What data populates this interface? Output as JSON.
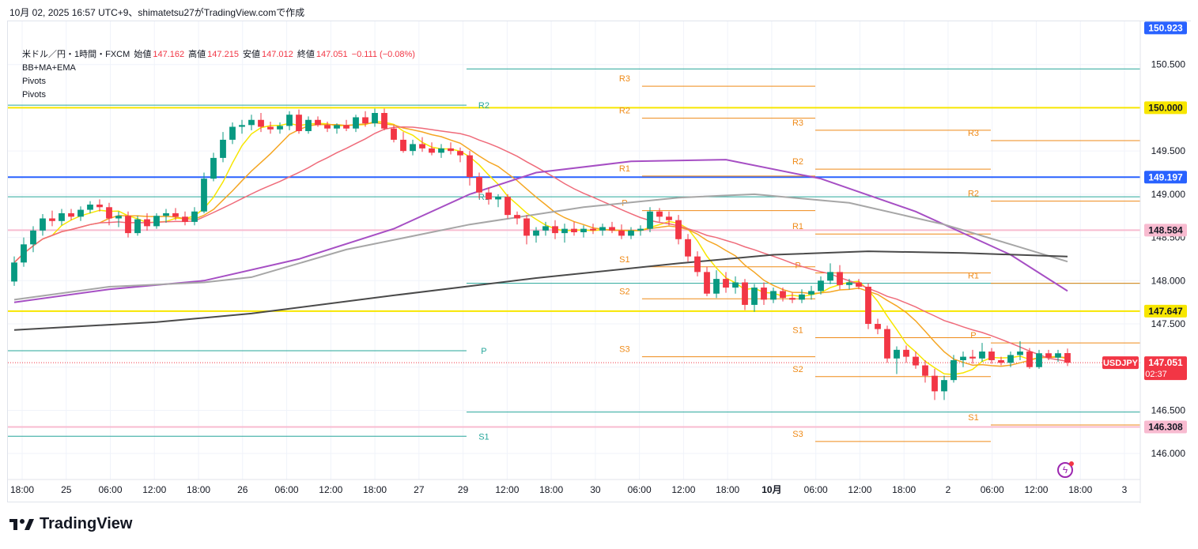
{
  "caption": "10月 02, 2025 16:57 UTC+9、shimatetsu27がTradingView.comで作成",
  "legend": {
    "symbol": "米ドル／円・1時間・FXCM",
    "open_label": "始値",
    "open": "147.162",
    "high_label": "高値",
    "high": "147.215",
    "low_label": "安値",
    "low": "147.012",
    "close_label": "終値",
    "close": "147.051",
    "change": "−0.111 (−0.08%)",
    "indicators": [
      "BB+MA+EMA",
      "Pivots",
      "Pivots"
    ]
  },
  "brand": "TradingView",
  "chart_data": {
    "type": "candlestick",
    "symbol": "USDJPY",
    "timeframe": "1時間",
    "y_ticks": [
      146.0,
      146.5,
      147.0,
      147.5,
      148.0,
      148.5,
      149.0,
      149.5,
      150.0,
      150.5
    ],
    "y_tick_labels": [
      "146.000",
      "146.500",
      "147.000",
      "147.500",
      "148.000",
      "148.500",
      "149.000",
      "149.500",
      "150.000",
      "150.500"
    ],
    "ylim": [
      145.7,
      151.0
    ],
    "x_tick_labels": [
      "18:00",
      "25",
      "06:00",
      "12:00",
      "18:00",
      "26",
      "06:00",
      "12:00",
      "18:00",
      "27",
      "29",
      "12:00",
      "18:00",
      "30",
      "06:00",
      "12:00",
      "18:00",
      "10月",
      "06:00",
      "12:00",
      "18:00",
      "2",
      "06:00",
      "12:00",
      "18:00",
      "3"
    ],
    "price_badges": [
      {
        "value": "150.923",
        "color": "#2962ff"
      },
      {
        "value": "150.000",
        "color": "#f7e600"
      },
      {
        "value": "149.197",
        "color": "#2962ff"
      },
      {
        "value": "148.584",
        "color": "#f8bbd0"
      },
      {
        "value": "147.647",
        "color": "#f7e600"
      },
      {
        "value": "146.308",
        "color": "#f8bbd0"
      }
    ],
    "last_price": {
      "symbol": "USDJPY",
      "value": "147.051",
      "countdown": "02:37",
      "color": "#f23645"
    },
    "horizontal_lines": [
      {
        "price": 150.0,
        "color": "#f7e600"
      },
      {
        "price": 149.197,
        "color": "#2962ff"
      },
      {
        "price": 148.584,
        "color": "#f8bbd0"
      },
      {
        "price": 147.647,
        "color": "#f7e600"
      },
      {
        "price": 146.308,
        "color": "#f8bbd0"
      }
    ],
    "pivots_weekly": {
      "color": "#26a69a",
      "levels": [
        {
          "label": "R2",
          "price": 150.03,
          "x_from": 0.0,
          "x_to": 0.405
        },
        {
          "label": "R1",
          "price": 148.97,
          "x_from": 0.0,
          "x_to": 0.405
        },
        {
          "label": "P",
          "price": 147.19,
          "x_from": 0.0,
          "x_to": 0.405
        },
        {
          "label": "S1",
          "price": 146.2,
          "x_from": 0.0,
          "x_to": 0.405
        },
        {
          "label": "",
          "price": 150.45,
          "x_from": 0.405,
          "x_to": 1.0
        },
        {
          "label": "",
          "price": 148.97,
          "x_from": 0.405,
          "x_to": 1.0
        },
        {
          "label": "",
          "price": 147.97,
          "x_from": 0.405,
          "x_to": 1.0
        },
        {
          "label": "",
          "price": 146.48,
          "x_from": 0.405,
          "x_to": 1.0
        }
      ]
    },
    "pivots_daily": {
      "color": "#ef8a17",
      "days": [
        {
          "x_from": 0.56,
          "x_to": 0.713,
          "R3": 150.25,
          "R2": 149.88,
          "R1": 149.21,
          "P": 148.81,
          "S1": 148.16,
          "S2": 147.79,
          "S3": 147.12
        },
        {
          "x_from": 0.713,
          "x_to": 0.868,
          "R3": 149.74,
          "R2": 149.29,
          "R1": 148.54,
          "P": 148.09,
          "S1": 147.34,
          "S2": 146.89,
          "S3": 146.14
        },
        {
          "x_from": 0.868,
          "x_to": 1.0,
          "R3": 149.62,
          "R2": 148.92,
          "R1": 147.97,
          "P": 147.28,
          "S1": 146.33,
          "S2": null,
          "S3": null
        }
      ]
    },
    "ohlc": [
      [
        147.99,
        148.28,
        147.94,
        148.21
      ],
      [
        148.21,
        148.5,
        148.16,
        148.42
      ],
      [
        148.42,
        148.63,
        148.33,
        148.58
      ],
      [
        148.58,
        148.77,
        148.52,
        148.72
      ],
      [
        148.72,
        148.81,
        148.63,
        148.69
      ],
      [
        148.69,
        148.83,
        148.64,
        148.78
      ],
      [
        148.78,
        148.83,
        148.7,
        148.74
      ],
      [
        148.74,
        148.86,
        148.69,
        148.82
      ],
      [
        148.82,
        148.92,
        148.78,
        148.88
      ],
      [
        148.88,
        148.94,
        148.8,
        148.85
      ],
      [
        148.85,
        148.9,
        148.64,
        148.72
      ],
      [
        148.72,
        148.8,
        148.62,
        148.75
      ],
      [
        148.75,
        148.8,
        148.5,
        148.55
      ],
      [
        148.55,
        148.75,
        148.52,
        148.71
      ],
      [
        148.71,
        148.78,
        148.58,
        148.63
      ],
      [
        148.63,
        148.78,
        148.6,
        148.75
      ],
      [
        148.75,
        148.83,
        148.67,
        148.78
      ],
      [
        148.78,
        148.84,
        148.7,
        148.74
      ],
      [
        148.74,
        148.8,
        148.64,
        148.68
      ],
      [
        148.68,
        148.85,
        148.64,
        148.8
      ],
      [
        148.8,
        149.25,
        148.78,
        149.18
      ],
      [
        149.18,
        149.48,
        149.15,
        149.42
      ],
      [
        149.42,
        149.72,
        149.37,
        149.63
      ],
      [
        149.63,
        149.83,
        149.58,
        149.78
      ],
      [
        149.78,
        149.86,
        149.7,
        149.8
      ],
      [
        149.8,
        149.92,
        149.74,
        149.86
      ],
      [
        149.86,
        149.94,
        149.72,
        149.78
      ],
      [
        149.78,
        149.84,
        149.7,
        149.75
      ],
      [
        149.75,
        149.83,
        149.7,
        149.79
      ],
      [
        149.79,
        149.96,
        149.74,
        149.92
      ],
      [
        149.92,
        149.98,
        149.7,
        149.73
      ],
      [
        149.73,
        149.9,
        149.7,
        149.86
      ],
      [
        149.86,
        149.9,
        149.78,
        149.8
      ],
      [
        149.8,
        149.84,
        149.72,
        149.76
      ],
      [
        149.76,
        149.82,
        149.7,
        149.8
      ],
      [
        149.8,
        149.86,
        149.73,
        149.76
      ],
      [
        149.76,
        149.92,
        149.72,
        149.89
      ],
      [
        149.89,
        149.96,
        149.78,
        149.82
      ],
      [
        149.82,
        149.99,
        149.78,
        149.94
      ],
      [
        149.94,
        149.99,
        149.74,
        149.76
      ],
      [
        149.76,
        149.8,
        149.6,
        149.63
      ],
      [
        149.63,
        149.72,
        149.48,
        149.5
      ],
      [
        149.5,
        149.63,
        149.45,
        149.58
      ],
      [
        149.58,
        149.66,
        149.49,
        149.53
      ],
      [
        149.53,
        149.6,
        149.45,
        149.48
      ],
      [
        149.48,
        149.58,
        149.42,
        149.53
      ],
      [
        149.53,
        149.6,
        149.46,
        149.5
      ],
      [
        149.5,
        149.54,
        149.37,
        149.45
      ],
      [
        149.45,
        149.5,
        149.1,
        149.2
      ],
      [
        149.2,
        149.25,
        148.95,
        149.02
      ],
      [
        149.02,
        149.08,
        148.88,
        148.94
      ],
      [
        148.94,
        149.0,
        148.85,
        148.97
      ],
      [
        148.97,
        149.0,
        148.72,
        148.76
      ],
      [
        148.76,
        148.8,
        148.65,
        148.72
      ],
      [
        148.72,
        148.76,
        148.42,
        148.52
      ],
      [
        148.52,
        148.62,
        148.44,
        148.58
      ],
      [
        148.58,
        148.68,
        148.52,
        148.63
      ],
      [
        148.63,
        148.7,
        148.48,
        148.55
      ],
      [
        148.55,
        148.66,
        148.44,
        148.6
      ],
      [
        148.6,
        148.68,
        148.52,
        148.56
      ],
      [
        148.56,
        148.64,
        148.5,
        148.6
      ],
      [
        148.6,
        148.66,
        148.54,
        148.58
      ],
      [
        148.58,
        148.66,
        148.52,
        148.62
      ],
      [
        148.62,
        148.68,
        148.55,
        148.58
      ],
      [
        148.58,
        148.65,
        148.48,
        148.52
      ],
      [
        148.52,
        148.62,
        148.48,
        148.58
      ],
      [
        148.58,
        148.64,
        148.52,
        148.6
      ],
      [
        148.6,
        148.85,
        148.56,
        148.8
      ],
      [
        148.8,
        148.84,
        148.68,
        148.74
      ],
      [
        148.74,
        148.8,
        148.64,
        148.7
      ],
      [
        148.7,
        148.76,
        148.42,
        148.48
      ],
      [
        148.48,
        148.54,
        148.22,
        148.28
      ],
      [
        148.28,
        148.34,
        148.05,
        148.1
      ],
      [
        148.1,
        148.16,
        147.82,
        147.85
      ],
      [
        147.85,
        148.12,
        147.8,
        148.02
      ],
      [
        148.02,
        148.1,
        147.86,
        147.92
      ],
      [
        147.92,
        148.05,
        147.85,
        147.98
      ],
      [
        147.98,
        148.02,
        147.66,
        147.72
      ],
      [
        147.72,
        147.96,
        147.64,
        147.92
      ],
      [
        147.92,
        147.98,
        147.72,
        147.78
      ],
      [
        147.78,
        147.92,
        147.74,
        147.88
      ],
      [
        147.88,
        147.92,
        147.76,
        147.8
      ],
      [
        147.8,
        147.86,
        147.74,
        147.78
      ],
      [
        147.78,
        147.9,
        147.74,
        147.84
      ],
      [
        147.84,
        147.94,
        147.78,
        147.88
      ],
      [
        147.88,
        148.05,
        147.84,
        148.0
      ],
      [
        148.0,
        148.2,
        147.96,
        148.1
      ],
      [
        148.1,
        148.18,
        147.9,
        147.95
      ],
      [
        147.95,
        148.02,
        147.9,
        147.98
      ],
      [
        147.98,
        148.02,
        147.9,
        147.93
      ],
      [
        147.93,
        147.97,
        147.44,
        147.5
      ],
      [
        147.5,
        147.56,
        147.38,
        147.44
      ],
      [
        147.44,
        147.48,
        147.05,
        147.1
      ],
      [
        147.1,
        147.24,
        146.92,
        147.2
      ],
      [
        147.2,
        147.25,
        147.05,
        147.12
      ],
      [
        147.12,
        147.18,
        146.98,
        147.02
      ],
      [
        147.02,
        147.08,
        146.82,
        146.9
      ],
      [
        146.9,
        146.98,
        146.62,
        146.72
      ],
      [
        146.72,
        146.9,
        146.62,
        146.85
      ],
      [
        146.85,
        147.14,
        146.82,
        147.08
      ],
      [
        147.08,
        147.18,
        147.0,
        147.12
      ],
      [
        147.12,
        147.2,
        147.04,
        147.1
      ],
      [
        147.1,
        147.28,
        147.06,
        147.18
      ],
      [
        147.18,
        147.22,
        147.04,
        147.08
      ],
      [
        147.08,
        147.12,
        147.02,
        147.05
      ],
      [
        147.05,
        147.18,
        147.0,
        147.14
      ],
      [
        147.14,
        147.3,
        147.08,
        147.18
      ],
      [
        147.18,
        147.22,
        146.98,
        147.0
      ],
      [
        147.0,
        147.2,
        146.98,
        147.16
      ],
      [
        147.16,
        147.2,
        147.08,
        147.11
      ],
      [
        147.11,
        147.2,
        147.06,
        147.16
      ],
      [
        147.162,
        147.215,
        147.012,
        147.051
      ]
    ],
    "moving_averages": [
      {
        "color": "#f7e600",
        "period": 5
      },
      {
        "color": "#f5a623",
        "period": 10
      },
      {
        "color": "#ef6b7a",
        "period": 20
      },
      {
        "color": "#a64fc4",
        "period": 50
      },
      {
        "color": "#a6a6a6",
        "period": 100
      },
      {
        "color": "#4a4a4a",
        "period": 200
      }
    ],
    "ma_overlays": [
      {
        "color": "#a64fc4",
        "points": [
          [
            0,
            147.75
          ],
          [
            10,
            147.9
          ],
          [
            20,
            148.0
          ],
          [
            30,
            148.25
          ],
          [
            40,
            148.6
          ],
          [
            48,
            149.0
          ],
          [
            55,
            149.25
          ],
          [
            65,
            149.38
          ],
          [
            75,
            149.4
          ],
          [
            85,
            149.18
          ],
          [
            95,
            148.8
          ],
          [
            105,
            148.3
          ],
          [
            111,
            147.88
          ]
        ]
      },
      {
        "color": "#a6a6a6",
        "points": [
          [
            0,
            147.78
          ],
          [
            10,
            147.93
          ],
          [
            20,
            147.98
          ],
          [
            25,
            148.04
          ],
          [
            35,
            148.36
          ],
          [
            48,
            148.65
          ],
          [
            60,
            148.85
          ],
          [
            70,
            148.96
          ],
          [
            78,
            149.0
          ],
          [
            88,
            148.9
          ],
          [
            98,
            148.65
          ],
          [
            105,
            148.42
          ],
          [
            111,
            148.22
          ]
        ]
      },
      {
        "color": "#4a4a4a",
        "points": [
          [
            0,
            147.43
          ],
          [
            15,
            147.52
          ],
          [
            25,
            147.62
          ],
          [
            40,
            147.83
          ],
          [
            55,
            148.03
          ],
          [
            70,
            148.2
          ],
          [
            80,
            148.3
          ],
          [
            90,
            148.34
          ],
          [
            100,
            148.32
          ],
          [
            111,
            148.28
          ]
        ]
      }
    ]
  }
}
